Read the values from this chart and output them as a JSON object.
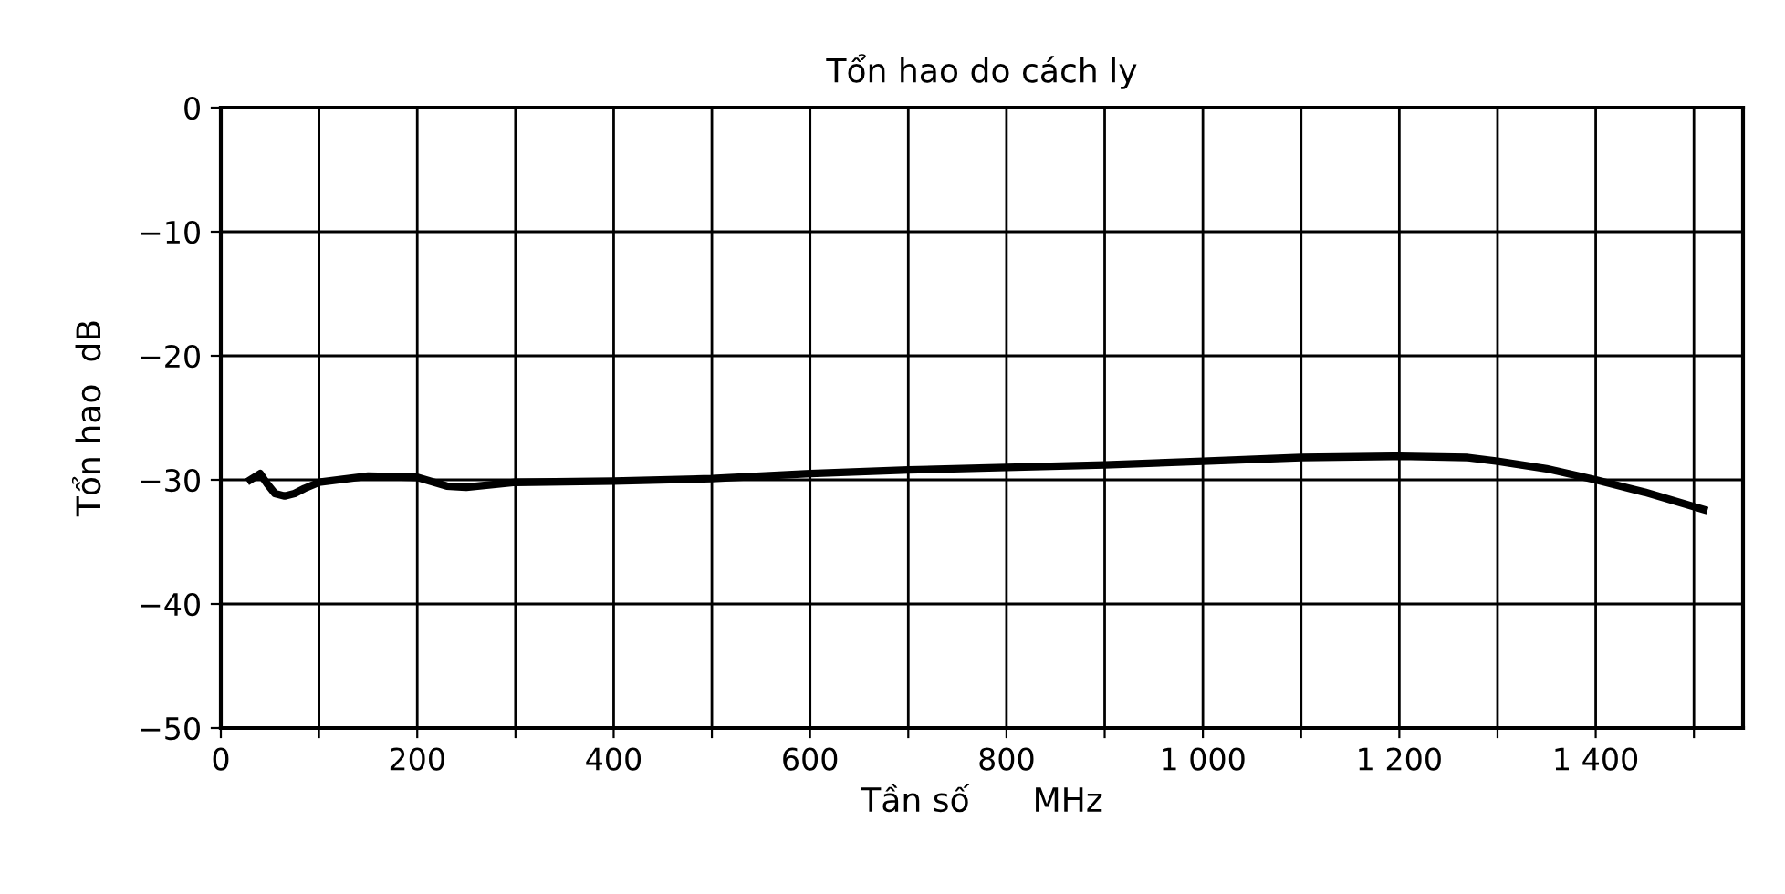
{
  "chart_data": {
    "type": "line",
    "title": "Tổn hao do cách ly",
    "xlabel": "Tần số      MHz",
    "ylabel": "Tổn hao  dB",
    "x": [
      30,
      40,
      47,
      55,
      65,
      75,
      85,
      100,
      150,
      200,
      230,
      250,
      300,
      400,
      500,
      600,
      700,
      800,
      900,
      1000,
      1100,
      1200,
      1270,
      1300,
      1350,
      1400,
      1450,
      1510
    ],
    "series": [
      {
        "color": "#000000",
        "values": [
          -30,
          -29.5,
          -30.3,
          -31.1,
          -31.3,
          -31.1,
          -30.7,
          -30.2,
          -29.7,
          -29.8,
          -30.5,
          -30.6,
          -30.2,
          -30.1,
          -29.9,
          -29.5,
          -29.2,
          -29,
          -28.8,
          -28.5,
          -28.2,
          -28.1,
          -28.2,
          -28.5,
          -29.1,
          -30,
          -31,
          -32.4
        ]
      }
    ],
    "xlim": [
      0,
      1550
    ],
    "xticks": [
      0,
      {
        "value": 100,
        "label": null
      },
      200,
      {
        "value": 300,
        "label": null
      },
      400,
      {
        "value": 500,
        "label": null
      },
      600,
      {
        "value": 700,
        "label": null
      },
      800,
      {
        "value": 900,
        "label": null
      },
      {
        "value": 1000,
        "label": "1 000"
      },
      {
        "value": 1100,
        "label": null
      },
      {
        "value": 1200,
        "label": "1 200"
      },
      {
        "value": 1300,
        "label": null
      },
      {
        "value": 1400,
        "label": "1 400"
      },
      {
        "value": 1500,
        "label": null
      }
    ],
    "ylim": [
      -50,
      0
    ],
    "yticks": [
      {
        "value": -50,
        "label": "−50"
      },
      {
        "value": -40,
        "label": "−40"
      },
      {
        "value": -30,
        "label": "−30"
      },
      {
        "value": -20,
        "label": "−20"
      },
      {
        "value": -10,
        "label": "−10"
      },
      0
    ],
    "grid": true,
    "line_style": "solid",
    "marker": "none"
  }
}
